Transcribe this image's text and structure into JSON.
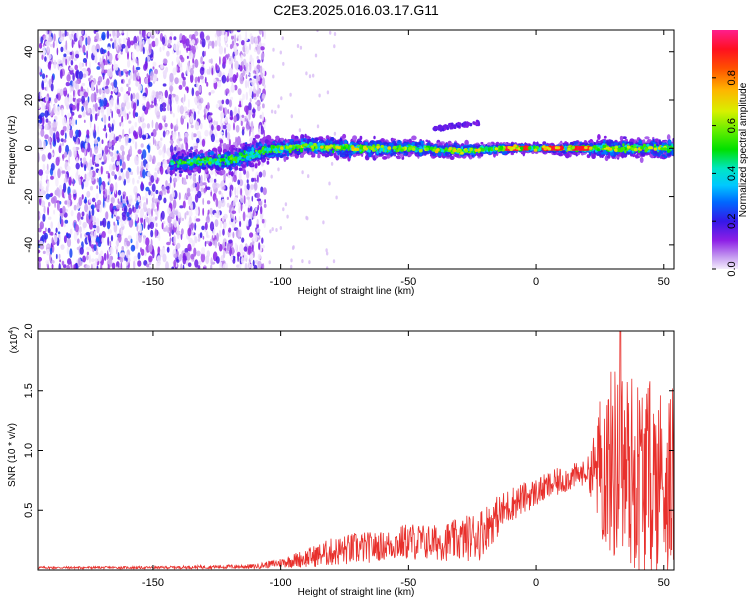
{
  "figure_title": "C2E3.2025.016.03.17.G11",
  "colors": {
    "snr_line": "#e8302c",
    "spectrum_low": "#e6d6f7",
    "spectrum_mid": "#7a12d9",
    "spectrum_core": "#00e0e0",
    "spectrum_peak": "#ff1010"
  },
  "chart_data": [
    {
      "type": "heatmap",
      "title": "",
      "xlabel": "Height of straight line (km)",
      "ylabel": "Frequency (Hz)",
      "xlim": [
        -195,
        54
      ],
      "ylim": [
        -50,
        49
      ],
      "x_ticks": [
        -150,
        -100,
        -50,
        0,
        50
      ],
      "x_tick_labels": [
        "-150",
        "-100",
        "-50",
        "0",
        "50"
      ],
      "y_ticks": [
        -40,
        -20,
        0,
        20,
        40
      ],
      "y_tick_labels": [
        "-40",
        "-20",
        "0",
        "20",
        "40"
      ],
      "colorbar": {
        "label": "Normalized spectral amplitude",
        "range": [
          0,
          1
        ],
        "ticks": [
          0.0,
          0.2,
          0.4,
          0.6,
          0.8
        ],
        "tick_labels": [
          "0.0",
          "0.2",
          "0.4",
          "0.6",
          "0.8"
        ]
      },
      "features": {
        "noise_region_x": [
          -195,
          -106
        ],
        "signal_band_center_hz": [
          [
            -140,
            -6
          ],
          [
            -120,
            -5
          ],
          [
            -106,
            -1
          ],
          [
            -90,
            1
          ],
          [
            -70,
            0
          ],
          [
            -50,
            0
          ],
          [
            -30,
            -1
          ],
          [
            -10,
            0
          ],
          [
            0,
            0
          ],
          [
            10,
            0
          ],
          [
            25,
            0
          ],
          [
            40,
            0
          ],
          [
            54,
            0
          ]
        ],
        "signal_band_halfwidth_hz": [
          [
            -140,
            6
          ],
          [
            -110,
            8
          ],
          [
            -100,
            6
          ],
          [
            -60,
            5
          ],
          [
            -30,
            4
          ],
          [
            0,
            2
          ],
          [
            25,
            5
          ],
          [
            54,
            6
          ]
        ],
        "peak_segments_x": [
          [
            -12,
            -3
          ],
          [
            3,
            10
          ],
          [
            13,
            21
          ]
        ]
      }
    },
    {
      "type": "line",
      "title": "",
      "xlabel": "Height of straight line (km)",
      "ylabel": "SNR (10 * v/v)",
      "y_multiplier_label": "(x10",
      "y_multiplier_exponent": "4",
      "xlim": [
        -195,
        54
      ],
      "ylim": [
        0,
        2.0
      ],
      "x_ticks": [
        -150,
        -100,
        -50,
        0,
        50
      ],
      "x_tick_labels": [
        "-150",
        "-100",
        "-50",
        "0",
        "50"
      ],
      "y_ticks": [
        0.5,
        1.0,
        1.5,
        2.0
      ],
      "y_tick_labels": [
        "0.5",
        "1.0",
        "1.5",
        "2.0"
      ],
      "series": [
        {
          "envelope_x": [
            -195,
            -150,
            -110,
            -100,
            -90,
            -80,
            -70,
            -60,
            -50,
            -40,
            -30,
            -22,
            -20,
            -10,
            0,
            10,
            20,
            25,
            30,
            40,
            54
          ],
          "envelope_mean": [
            0.02,
            0.02,
            0.03,
            0.06,
            0.1,
            0.15,
            0.18,
            0.2,
            0.24,
            0.23,
            0.25,
            0.3,
            0.35,
            0.55,
            0.65,
            0.75,
            0.82,
            0.85,
            0.9,
            0.8,
            0.75
          ],
          "envelope_amplitude": [
            0.01,
            0.01,
            0.02,
            0.04,
            0.08,
            0.12,
            0.14,
            0.12,
            0.16,
            0.15,
            0.18,
            0.22,
            0.2,
            0.15,
            0.12,
            0.12,
            0.1,
            0.5,
            0.7,
            0.7,
            0.65
          ],
          "peak_value": 2.0,
          "peak_x": 33
        }
      ]
    }
  ]
}
